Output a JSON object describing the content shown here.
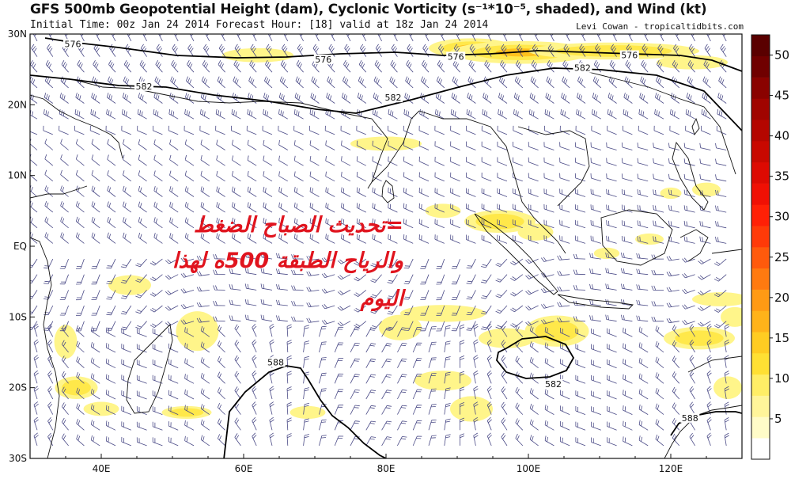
{
  "title": "GFS 500mb Geopotential Height (dam), Cyclonic Vorticity (s⁻¹*10⁻⁵, shaded), and Wind (kt)",
  "subtitle": "Initial Time: 00z Jan 24 2014 Forecast Hour: [18] valid at 18z Jan 24 2014",
  "credit": "Levi Cowan - tropicaltidbits.com",
  "axes": {
    "lat_labels": [
      "30N",
      "20N",
      "10N",
      "EQ",
      "10S",
      "20S",
      "30S"
    ],
    "lon_labels": [
      "40E",
      "60E",
      "80E",
      "100E",
      "120E"
    ]
  },
  "colorbar": {
    "labels": [
      "5",
      "10",
      "15",
      "20",
      "25",
      "30",
      "35",
      "40",
      "45",
      "50"
    ],
    "colors": [
      "#ffffff",
      "#fffcc8",
      "#fff59a",
      "#ffee66",
      "#ffe033",
      "#ffcc22",
      "#ffb31a",
      "#ff9a14",
      "#ff7a10",
      "#ff5a0c",
      "#ff3a08",
      "#ff2006",
      "#f01004",
      "#dd0a02",
      "#c80800",
      "#b40600",
      "#a00400",
      "#8a0200",
      "#700000",
      "#5a0000"
    ]
  },
  "contours": [
    {
      "label": "576",
      "points": [
        [
          57,
          48
        ],
        [
          88,
          53
        ],
        [
          150,
          60
        ],
        [
          223,
          70
        ],
        [
          300,
          73
        ],
        [
          362,
          72
        ],
        [
          430,
          68
        ],
        [
          500,
          66
        ],
        [
          560,
          70
        ],
        [
          620,
          68
        ],
        [
          680,
          64
        ],
        [
          740,
          66
        ],
        [
          800,
          68
        ],
        [
          860,
          70
        ],
        [
          900,
          76
        ],
        [
          938,
          90
        ]
      ]
    },
    {
      "label": "582",
      "points": [
        [
          38,
          95
        ],
        [
          88,
          100
        ],
        [
          150,
          108
        ],
        [
          210,
          110
        ],
        [
          270,
          120
        ],
        [
          340,
          128
        ],
        [
          400,
          138
        ],
        [
          450,
          143
        ],
        [
          520,
          126
        ],
        [
          580,
          110
        ],
        [
          640,
          95
        ],
        [
          700,
          86
        ],
        [
          760,
          88
        ],
        [
          830,
          95
        ],
        [
          890,
          115
        ],
        [
          938,
          165
        ]
      ]
    },
    {
      "label": "588",
      "points": [
        [
          283,
          580
        ],
        [
          290,
          520
        ],
        [
          310,
          495
        ],
        [
          340,
          470
        ],
        [
          362,
          462
        ],
        [
          380,
          465
        ],
        [
          390,
          480
        ],
        [
          405,
          505
        ],
        [
          420,
          525
        ],
        [
          440,
          540
        ],
        [
          460,
          560
        ],
        [
          480,
          575
        ],
        [
          490,
          580
        ]
      ]
    },
    {
      "label": "582",
      "points": [
        [
          640,
          440
        ],
        [
          660,
          428
        ],
        [
          690,
          425
        ],
        [
          715,
          435
        ],
        [
          725,
          452
        ],
        [
          716,
          468
        ],
        [
          695,
          476
        ],
        [
          665,
          478
        ],
        [
          640,
          470
        ],
        [
          628,
          455
        ],
        [
          630,
          445
        ],
        [
          640,
          440
        ]
      ]
    },
    {
      "label": "588",
      "points": [
        [
          848,
          550
        ],
        [
          858,
          535
        ],
        [
          878,
          525
        ],
        [
          905,
          520
        ],
        [
          930,
          520
        ],
        [
          938,
          522
        ]
      ]
    }
  ],
  "contour_label_positions": [
    {
      "text": "576",
      "lon": 36.0,
      "lat": 28.4
    },
    {
      "text": "576",
      "lon": 71.2,
      "lat": 26.2
    },
    {
      "text": "576",
      "lon": 89.8,
      "lat": 26.6
    },
    {
      "text": "576",
      "lon": 114.2,
      "lat": 26.8
    },
    {
      "text": "582",
      "lon": 46.0,
      "lat": 22.4
    },
    {
      "text": "582",
      "lon": 81.0,
      "lat": 20.8
    },
    {
      "text": "582",
      "lon": 107.6,
      "lat": 25.0
    },
    {
      "text": "588",
      "lon": 64.5,
      "lat": -16.6
    },
    {
      "text": "582",
      "lon": 103.5,
      "lat": -19.7
    },
    {
      "text": "588",
      "lon": 122.7,
      "lat": -24.5
    }
  ],
  "vorticity_blobs": [
    {
      "lon": 92.0,
      "lat": 28.0,
      "rx": 6.0,
      "ry": 1.4,
      "level": 3
    },
    {
      "lon": 99.0,
      "lat": 27.4,
      "rx": 10.0,
      "ry": 1.6,
      "level": 4
    },
    {
      "lon": 112.0,
      "lat": 27.6,
      "rx": 12.0,
      "ry": 1.2,
      "level": 2
    },
    {
      "lon": 123.0,
      "lat": 26.0,
      "rx": 5.0,
      "ry": 1.0,
      "level": 1
    },
    {
      "lon": 62.0,
      "lat": 27.0,
      "rx": 5.0,
      "ry": 1.0,
      "level": 1
    },
    {
      "lon": 80.0,
      "lat": 14.5,
      "rx": 5.0,
      "ry": 1.0,
      "level": 1
    },
    {
      "lon": 88.0,
      "lat": 5.0,
      "rx": 2.5,
      "ry": 1.0,
      "level": 1
    },
    {
      "lon": 96.0,
      "lat": 3.5,
      "rx": 5.0,
      "ry": 1.6,
      "level": 2
    },
    {
      "lon": 101.0,
      "lat": 2.0,
      "rx": 2.5,
      "ry": 1.2,
      "level": 1
    },
    {
      "lon": 104.0,
      "lat": -12.0,
      "rx": 4.5,
      "ry": 2.2,
      "level": 2
    },
    {
      "lon": 97.0,
      "lat": -13.0,
      "rx": 4.0,
      "ry": 1.4,
      "level": 1
    },
    {
      "lon": 88.0,
      "lat": -9.5,
      "rx": 6.0,
      "ry": 1.2,
      "level": 1
    },
    {
      "lon": 82.0,
      "lat": -11.5,
      "rx": 3.0,
      "ry": 1.8,
      "level": 1
    },
    {
      "lon": 88.0,
      "lat": -19.0,
      "rx": 4.0,
      "ry": 1.4,
      "level": 1
    },
    {
      "lon": 92.0,
      "lat": -23.0,
      "rx": 3.0,
      "ry": 1.8,
      "level": 1
    },
    {
      "lon": 53.5,
      "lat": -12.0,
      "rx": 3.0,
      "ry": 2.8,
      "level": 1
    },
    {
      "lon": 44.0,
      "lat": -5.5,
      "rx": 3.0,
      "ry": 1.4,
      "level": 1
    },
    {
      "lon": 35.0,
      "lat": -13.5,
      "rx": 1.6,
      "ry": 2.4,
      "level": 1
    },
    {
      "lon": 36.5,
      "lat": -20.0,
      "rx": 3.0,
      "ry": 1.6,
      "level": 2
    },
    {
      "lon": 40.0,
      "lat": -23.0,
      "rx": 2.5,
      "ry": 1.0,
      "level": 1
    },
    {
      "lon": 52.0,
      "lat": -23.5,
      "rx": 3.5,
      "ry": 0.9,
      "level": 2
    },
    {
      "lon": 69.0,
      "lat": -23.5,
      "rx": 2.5,
      "ry": 0.9,
      "level": 1
    },
    {
      "lon": 124.0,
      "lat": -13.0,
      "rx": 5.0,
      "ry": 1.6,
      "level": 2
    },
    {
      "lon": 129.0,
      "lat": -10.0,
      "rx": 2.0,
      "ry": 1.4,
      "level": 1
    },
    {
      "lon": 127.0,
      "lat": -7.5,
      "rx": 4.0,
      "ry": 1.0,
      "level": 1
    },
    {
      "lon": 125.0,
      "lat": 8.0,
      "rx": 2.0,
      "ry": 1.0,
      "level": 1
    },
    {
      "lon": 120.0,
      "lat": 7.5,
      "rx": 1.5,
      "ry": 0.8,
      "level": 1
    },
    {
      "lon": 117.0,
      "lat": 1.0,
      "rx": 2.0,
      "ry": 0.8,
      "level": 1
    },
    {
      "lon": 111.0,
      "lat": -1.0,
      "rx": 1.8,
      "ry": 0.8,
      "level": 1
    },
    {
      "lon": 128.0,
      "lat": -20.0,
      "rx": 2.0,
      "ry": 1.6,
      "level": 1
    }
  ],
  "overlay_text": [
    "=تحديث الصباح الضغط",
    "والرياح الطبقة 500ه لهذا",
    "اليوم"
  ]
}
